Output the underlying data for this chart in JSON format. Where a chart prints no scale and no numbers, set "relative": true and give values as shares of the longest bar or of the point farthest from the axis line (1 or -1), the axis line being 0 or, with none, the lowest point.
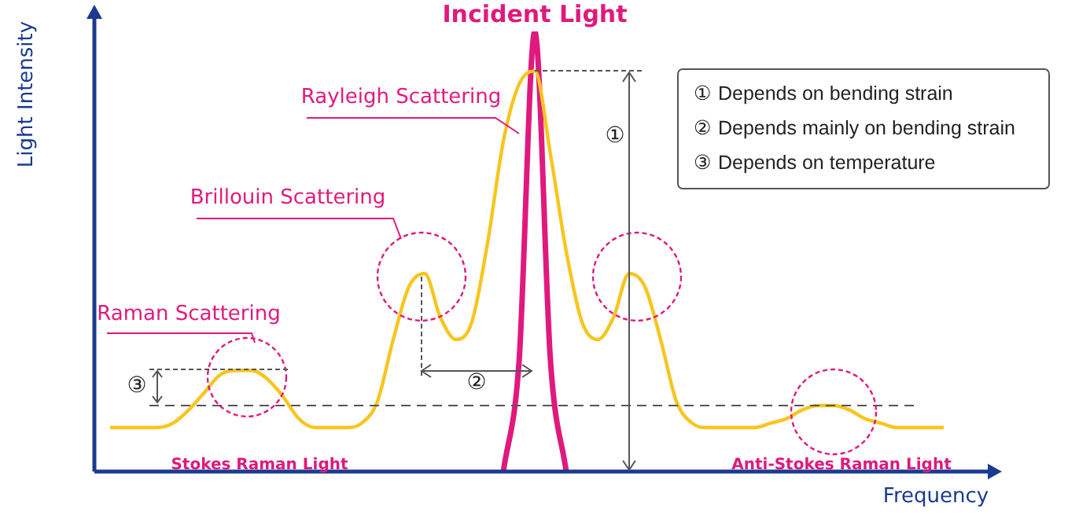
{
  "chart_data": {
    "type": "line",
    "relative": true,
    "xlabel": "Frequency",
    "ylabel": "Light Intensity",
    "legend": false,
    "ref_lines": [
      {
        "axis": "y",
        "value": 0.15,
        "color": "#555555",
        "line_style": "dashed"
      }
    ],
    "marker": "none",
    "categories": [
      null,
      null,
      null,
      null,
      null,
      null,
      null,
      null,
      null,
      null,
      null,
      null,
      null,
      null,
      null,
      null,
      null,
      null,
      null,
      null,
      null,
      null,
      null,
      null,
      null,
      null,
      null,
      null,
      null,
      null,
      null,
      null,
      null,
      null,
      null,
      null,
      null,
      null,
      null,
      null,
      null,
      null,
      null,
      null,
      null,
      null,
      null,
      null,
      null,
      null,
      null,
      null,
      null,
      null,
      null,
      null,
      null,
      null
    ],
    "series": [
      {
        "color": "#f7c51e",
        "values": [
          null,
          0.1,
          0.1,
          0.1,
          0.1,
          0.11,
          0.14,
          0.18,
          0.22,
          0.23,
          0.23,
          0.21,
          0.17,
          0.12,
          0.1,
          0.1,
          0.1,
          0.11,
          0.16,
          0.3,
          0.42,
          0.45,
          0.35,
          0.3,
          0.34,
          0.52,
          0.75,
          0.88,
          0.91,
          0.72,
          0.5,
          0.34,
          0.3,
          0.35,
          0.45,
          0.42,
          0.3,
          0.16,
          0.11,
          0.1,
          0.1,
          0.1,
          0.1,
          0.11,
          0.12,
          0.14,
          0.15,
          0.15,
          0.14,
          0.12,
          0.11,
          0.1,
          0.1,
          0.1,
          0.1,
          null,
          null,
          null
        ]
      },
      {
        "name": "Incident Light",
        "color": "#e0197d",
        "values": [
          null,
          null,
          null,
          null,
          null,
          null,
          null,
          null,
          null,
          null,
          null,
          null,
          null,
          null,
          null,
          null,
          null,
          null,
          null,
          null,
          null,
          null,
          null,
          null,
          null,
          null,
          0,
          0.25,
          1,
          0.25,
          0,
          null,
          null,
          null,
          null,
          null,
          null,
          null,
          null,
          null,
          null,
          null,
          null,
          null,
          null,
          null,
          null,
          null,
          null,
          null,
          null,
          null,
          null,
          null,
          null,
          null,
          null,
          null
        ]
      }
    ],
    "annotations": [
      "Rayleigh Scattering",
      "Brillouin Scattering",
      "Raman Scattering",
      "Stokes Raman Light",
      "Anti-Stokes Raman Light",
      "①",
      "②",
      "③",
      "① Depends on bending strain",
      "② Depends mainly on bending strain",
      "③ Depends on temperature"
    ]
  }
}
